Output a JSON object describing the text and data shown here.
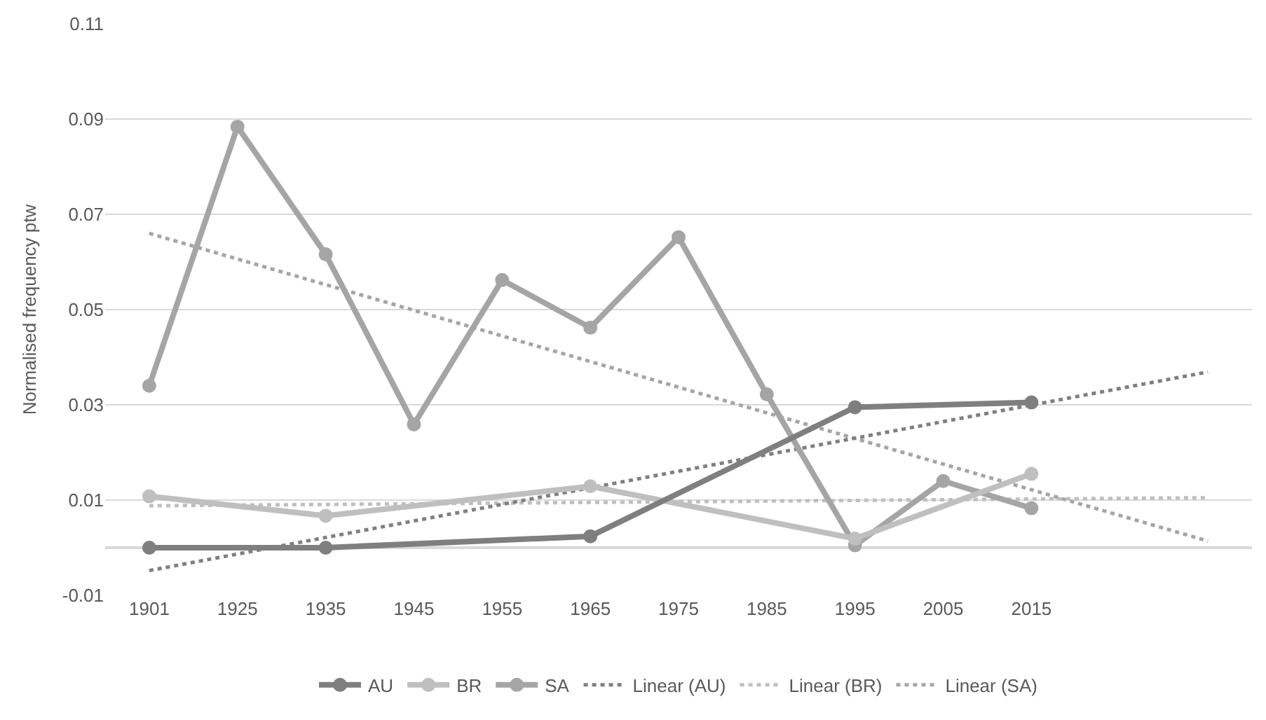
{
  "chart_data": {
    "type": "line",
    "ylabel": "Normalised frequency ptw",
    "categories": [
      "1901",
      "1925",
      "1935",
      "1945",
      "1955",
      "1965",
      "1975",
      "1985",
      "1995",
      "2005",
      "2015",
      null,
      null
    ],
    "series": [
      {
        "name": "AU",
        "color": "#7f7f7f",
        "marker": "circle",
        "line_style": "solid",
        "values": [
          0,
          null,
          0,
          null,
          null,
          0.0024,
          null,
          null,
          0.0295,
          null,
          0.0305,
          null,
          null
        ]
      },
      {
        "name": "BR",
        "color": "#bfbfbf",
        "marker": "circle",
        "line_style": "solid",
        "values": [
          0.0108,
          null,
          0.0067,
          null,
          null,
          0.0129,
          null,
          null,
          0.0019,
          null,
          0.0155,
          null,
          null
        ]
      },
      {
        "name": "SA",
        "color": "#a5a5a5",
        "marker": "circle",
        "line_style": "solid",
        "values": [
          0.034,
          0.0884,
          0.0616,
          0.0259,
          0.0562,
          0.0462,
          0.0652,
          0.0322,
          0.0005,
          0.014,
          0.0083,
          null,
          null
        ]
      },
      {
        "name": "Linear (AU)",
        "color": "#7f7f7f",
        "marker": "none",
        "line_style": "dotted",
        "values": [
          -0.0048,
          null,
          null,
          null,
          null,
          null,
          null,
          null,
          null,
          null,
          null,
          null,
          0.0369
        ]
      },
      {
        "name": "Linear (BR)",
        "color": "#bfbfbf",
        "marker": "none",
        "line_style": "dotted",
        "values": [
          0.0088,
          null,
          null,
          null,
          null,
          null,
          null,
          null,
          null,
          null,
          null,
          null,
          0.0105
        ]
      },
      {
        "name": "Linear (SA)",
        "color": "#a5a5a5",
        "marker": "none",
        "line_style": "dotted",
        "values": [
          0.066,
          null,
          null,
          null,
          null,
          null,
          null,
          null,
          null,
          null,
          null,
          null,
          0.0014
        ]
      }
    ],
    "ylim": [
      -0.01,
      0.11
    ],
    "yticks": [
      -0.01,
      0.01,
      0.03,
      0.05,
      0.07,
      0.09,
      0.11
    ],
    "grid": "y",
    "legend": "bottom"
  }
}
